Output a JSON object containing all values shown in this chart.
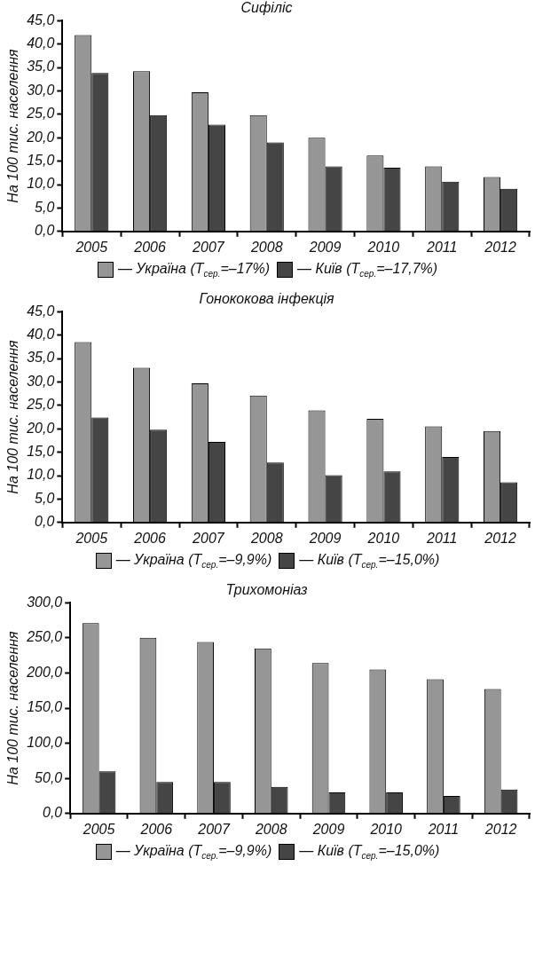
{
  "chart_data": [
    {
      "type": "bar",
      "title": "Сифіліс",
      "ylabel": "На 100 тис. населення",
      "categories": [
        "2005",
        "2006",
        "2007",
        "2008",
        "2009",
        "2010",
        "2011",
        "2012"
      ],
      "series": [
        {
          "name": "— Україна (T$_{сер.}$=–17%)",
          "color": "#969696",
          "values": [
            41.9,
            34.2,
            29.7,
            24.8,
            20.0,
            16.2,
            13.9,
            11.6
          ]
        },
        {
          "name": "— Київ (T$_{сер.}$=–17,7%)",
          "color": "#454545",
          "values": [
            33.8,
            24.8,
            22.8,
            19.0,
            13.9,
            13.6,
            10.6,
            9.1
          ]
        }
      ],
      "ylim": [
        0,
        45
      ],
      "yticks": [
        {
          "value": 0,
          "label": "0,0"
        },
        {
          "value": 5,
          "label": "5,0"
        },
        {
          "value": 10,
          "label": "10,0"
        },
        {
          "value": 15,
          "label": "15,0"
        },
        {
          "value": 20,
          "label": "20,0"
        },
        {
          "value": 25,
          "label": "25,0"
        },
        {
          "value": 30,
          "label": "30,0"
        },
        {
          "value": 35,
          "label": "35,0"
        },
        {
          "value": 40,
          "label": "40,0"
        },
        {
          "value": 45,
          "label": "45,0"
        }
      ],
      "grid": false,
      "legend": "bottom"
    },
    {
      "type": "bar",
      "title": "Гонококова інфекція",
      "ylabel": "На 100 тис. населення",
      "categories": [
        "2005",
        "2006",
        "2007",
        "2008",
        "2009",
        "2010",
        "2011",
        "2012"
      ],
      "series": [
        {
          "name": "— Україна (T$_{сер.}$=–9,9%)",
          "color": "#969696",
          "values": [
            38.5,
            33.0,
            29.7,
            27.1,
            23.9,
            22.1,
            20.5,
            19.5
          ]
        },
        {
          "name": "— Київ (T$_{сер.}$=–15,0%)",
          "color": "#454545",
          "values": [
            22.4,
            19.8,
            17.2,
            12.8,
            10.1,
            10.9,
            14.0,
            8.6
          ]
        }
      ],
      "ylim": [
        0,
        45
      ],
      "yticks": [
        {
          "value": 0,
          "label": "0,0"
        },
        {
          "value": 5,
          "label": "5,0"
        },
        {
          "value": 10,
          "label": "10,0"
        },
        {
          "value": 15,
          "label": "15,0"
        },
        {
          "value": 20,
          "label": "20,0"
        },
        {
          "value": 25,
          "label": "25,0"
        },
        {
          "value": 30,
          "label": "30,0"
        },
        {
          "value": 35,
          "label": "35,0"
        },
        {
          "value": 40,
          "label": "40,0"
        },
        {
          "value": 45,
          "label": "45,0"
        }
      ],
      "grid": false,
      "legend": "bottom"
    },
    {
      "type": "bar",
      "title": "Трихомоніаз",
      "ylabel": "На 100 тис. населення",
      "categories": [
        "2005",
        "2006",
        "2007",
        "2008",
        "2009",
        "2010",
        "2011",
        "2012"
      ],
      "series": [
        {
          "name": "— Україна (T$_{сер.}$=–9,9%)",
          "color": "#969696",
          "values": [
            271,
            250,
            244,
            235,
            214,
            205,
            191,
            177
          ]
        },
        {
          "name": "— Київ (T$_{сер.}$=–15,0%)",
          "color": "#454545",
          "values": [
            60,
            45,
            45,
            38,
            30,
            30,
            25,
            34
          ]
        }
      ],
      "ylim": [
        0,
        300
      ],
      "yticks": [
        {
          "value": 0,
          "label": "0,0"
        },
        {
          "value": 50,
          "label": "50,0"
        },
        {
          "value": 100,
          "label": "100,0"
        },
        {
          "value": 150,
          "label": "150,0"
        },
        {
          "value": 200,
          "label": "200,0"
        },
        {
          "value": 250,
          "label": "250,0"
        },
        {
          "value": 300,
          "label": "300,0"
        }
      ],
      "grid": false,
      "legend": "bottom"
    }
  ]
}
